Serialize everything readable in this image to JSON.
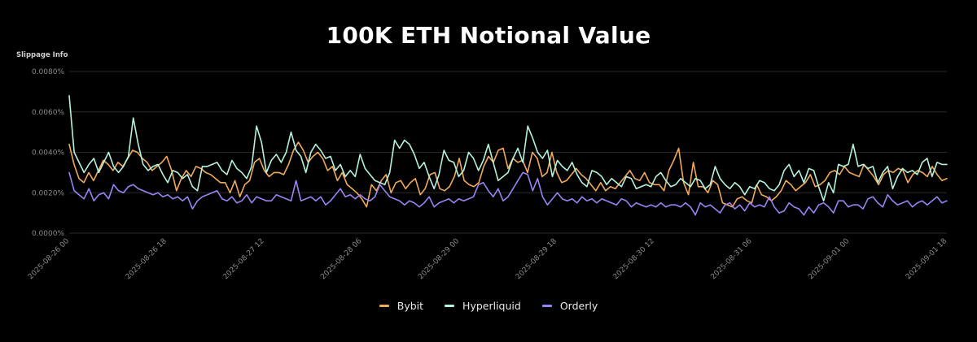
{
  "chart_data": {
    "type": "line",
    "title": "100K ETH Notional Value",
    "ylabel": "Slippage Info",
    "xlabel": "",
    "ylim": [
      0,
      0.008
    ],
    "y_ticks": [
      "0.0000%",
      "0.0020%",
      "0.0040%",
      "0.0060%",
      "0.0080%"
    ],
    "x_ticks": [
      "2025-08-26 00",
      "2025-08-26 18",
      "2025-08-27 12",
      "2025-08-28 06",
      "2025-08-29 00",
      "2025-08-29 18",
      "2025-08-30 12",
      "2025-08-31 06",
      "2025-09-01 00",
      "2025-09-01 18"
    ],
    "grid": true,
    "legend_position": "bottom-center",
    "series": [
      {
        "name": "Bybit",
        "color": "#f0a95b",
        "values": [
          0.0044,
          0.0034,
          0.0027,
          0.0025,
          0.003,
          0.0026,
          0.0031,
          0.0036,
          0.0034,
          0.0031,
          0.0035,
          0.0033,
          0.0037,
          0.0041,
          0.004,
          0.0037,
          0.0035,
          0.0031,
          0.0033,
          0.0035,
          0.0038,
          0.0031,
          0.0021,
          0.0027,
          0.0031,
          0.0028,
          0.0033,
          0.0032,
          0.003,
          0.0029,
          0.0027,
          0.0025,
          0.0025,
          0.002,
          0.0026,
          0.0018,
          0.0024,
          0.0026,
          0.0035,
          0.0037,
          0.0031,
          0.0028,
          0.003,
          0.003,
          0.0029,
          0.0034,
          0.0041,
          0.0045,
          0.0041,
          0.0035,
          0.0038,
          0.004,
          0.0037,
          0.0031,
          0.0033,
          0.0026,
          0.003,
          0.0024,
          0.0022,
          0.002,
          0.0017,
          0.0013,
          0.0024,
          0.0021,
          0.0026,
          0.0029,
          0.002,
          0.0025,
          0.0026,
          0.0022,
          0.0025,
          0.0027,
          0.0019,
          0.0022,
          0.0029,
          0.003,
          0.0022,
          0.0021,
          0.0023,
          0.0028,
          0.0037,
          0.0026,
          0.0024,
          0.0023,
          0.0025,
          0.0033,
          0.0038,
          0.0035,
          0.0041,
          0.0042,
          0.0032,
          0.0037,
          0.0035,
          0.0036,
          0.003,
          0.004,
          0.0037,
          0.0028,
          0.003,
          0.004,
          0.003,
          0.0025,
          0.0026,
          0.0029,
          0.0032,
          0.0029,
          0.0027,
          0.0024,
          0.0021,
          0.0025,
          0.0021,
          0.0023,
          0.0022,
          0.0025,
          0.0028,
          0.0031,
          0.0027,
          0.0026,
          0.003,
          0.0025,
          0.0024,
          0.0024,
          0.0021,
          0.0031,
          0.0036,
          0.0042,
          0.0025,
          0.0019,
          0.0035,
          0.0023,
          0.0023,
          0.002,
          0.0026,
          0.0024,
          0.0015,
          0.0014,
          0.0013,
          0.0017,
          0.0018,
          0.0016,
          0.0015,
          0.0024,
          0.0019,
          0.0018,
          0.0016,
          0.0018,
          0.0021,
          0.0026,
          0.0024,
          0.0021,
          0.0023,
          0.0025,
          0.0029,
          0.0023,
          0.0024,
          0.0026,
          0.003,
          0.0031,
          0.0029,
          0.0033,
          0.003,
          0.0029,
          0.0028,
          0.0034,
          0.0031,
          0.0028,
          0.0024,
          0.0029,
          0.0031,
          0.003,
          0.0032,
          0.0031,
          0.0025,
          0.0029,
          0.0031,
          0.003,
          0.0028,
          0.0033,
          0.0029,
          0.0026,
          0.0027
        ]
      },
      {
        "name": "Hyperliquid",
        "color": "#b5f2dc",
        "values": [
          0.0068,
          0.004,
          0.0035,
          0.003,
          0.0034,
          0.0037,
          0.003,
          0.0035,
          0.004,
          0.0033,
          0.003,
          0.0033,
          0.0038,
          0.0057,
          0.0044,
          0.0034,
          0.0031,
          0.0033,
          0.0034,
          0.0029,
          0.0025,
          0.0031,
          0.003,
          0.0027,
          0.0029,
          0.0023,
          0.0021,
          0.0033,
          0.0033,
          0.0034,
          0.0035,
          0.0031,
          0.0029,
          0.0036,
          0.0032,
          0.003,
          0.0027,
          0.0033,
          0.0053,
          0.0045,
          0.003,
          0.0036,
          0.0039,
          0.0035,
          0.004,
          0.005,
          0.0041,
          0.0038,
          0.003,
          0.004,
          0.0044,
          0.0041,
          0.0037,
          0.0038,
          0.0031,
          0.0034,
          0.0028,
          0.0031,
          0.0028,
          0.0039,
          0.0032,
          0.0029,
          0.0026,
          0.0025,
          0.0024,
          0.003,
          0.0046,
          0.0042,
          0.0046,
          0.0044,
          0.0039,
          0.0032,
          0.0035,
          0.0028,
          0.0022,
          0.0029,
          0.0041,
          0.0036,
          0.0035,
          0.0028,
          0.0031,
          0.004,
          0.0037,
          0.0031,
          0.0036,
          0.0044,
          0.0035,
          0.0026,
          0.0028,
          0.003,
          0.0037,
          0.0042,
          0.0035,
          0.0053,
          0.0047,
          0.004,
          0.0037,
          0.0041,
          0.0028,
          0.0036,
          0.0033,
          0.0031,
          0.0035,
          0.0029,
          0.0025,
          0.0023,
          0.0031,
          0.003,
          0.0028,
          0.0024,
          0.0027,
          0.0025,
          0.0023,
          0.0028,
          0.0027,
          0.0022,
          0.0023,
          0.0024,
          0.0023,
          0.0028,
          0.003,
          0.0026,
          0.0023,
          0.0024,
          0.0027,
          0.0025,
          0.0023,
          0.0027,
          0.0026,
          0.0022,
          0.0024,
          0.0033,
          0.0027,
          0.0024,
          0.0022,
          0.0025,
          0.0023,
          0.0019,
          0.0023,
          0.0022,
          0.0026,
          0.0025,
          0.0022,
          0.0021,
          0.0024,
          0.0031,
          0.0034,
          0.0028,
          0.0031,
          0.0025,
          0.0032,
          0.0031,
          0.0023,
          0.0016,
          0.0025,
          0.002,
          0.0034,
          0.0033,
          0.0034,
          0.0044,
          0.0033,
          0.0034,
          0.0032,
          0.0033,
          0.0025,
          0.003,
          0.0033,
          0.0022,
          0.0028,
          0.0032,
          0.003,
          0.0031,
          0.0029,
          0.0035,
          0.0037,
          0.0028,
          0.0035,
          0.0034,
          0.0034
        ]
      },
      {
        "name": "Orderly",
        "color": "#9b82f2",
        "values": [
          0.003,
          0.0021,
          0.0019,
          0.0017,
          0.0022,
          0.0016,
          0.0019,
          0.002,
          0.0017,
          0.0024,
          0.0021,
          0.002,
          0.0023,
          0.0024,
          0.0022,
          0.0021,
          0.002,
          0.0019,
          0.002,
          0.0018,
          0.0019,
          0.0017,
          0.0018,
          0.0016,
          0.0018,
          0.0012,
          0.0016,
          0.0018,
          0.0019,
          0.002,
          0.0021,
          0.0017,
          0.0016,
          0.0018,
          0.0015,
          0.0016,
          0.0019,
          0.0015,
          0.0018,
          0.0017,
          0.0016,
          0.0016,
          0.0019,
          0.0018,
          0.0017,
          0.0016,
          0.0026,
          0.0016,
          0.0017,
          0.0018,
          0.0016,
          0.0018,
          0.0014,
          0.0016,
          0.0019,
          0.0022,
          0.0018,
          0.0019,
          0.0017,
          0.0019,
          0.0017,
          0.0016,
          0.0018,
          0.0024,
          0.0021,
          0.0018,
          0.0017,
          0.0016,
          0.0014,
          0.0016,
          0.0015,
          0.0013,
          0.0015,
          0.0018,
          0.0013,
          0.0015,
          0.0016,
          0.0017,
          0.0015,
          0.0017,
          0.0016,
          0.0017,
          0.0018,
          0.0024,
          0.0025,
          0.0021,
          0.0018,
          0.0022,
          0.0016,
          0.0018,
          0.0022,
          0.0026,
          0.003,
          0.0029,
          0.0021,
          0.0027,
          0.0018,
          0.0014,
          0.0017,
          0.002,
          0.0017,
          0.0016,
          0.0017,
          0.0015,
          0.0018,
          0.0016,
          0.0017,
          0.0015,
          0.0017,
          0.0016,
          0.0015,
          0.0014,
          0.0017,
          0.0016,
          0.0013,
          0.0015,
          0.0014,
          0.0013,
          0.0014,
          0.0013,
          0.0015,
          0.0013,
          0.0014,
          0.0014,
          0.0013,
          0.0015,
          0.0013,
          0.0009,
          0.0015,
          0.0013,
          0.0014,
          0.0012,
          0.001,
          0.0014,
          0.0015,
          0.0012,
          0.0014,
          0.0011,
          0.0015,
          0.0013,
          0.0014,
          0.0013,
          0.0018,
          0.0013,
          0.001,
          0.0011,
          0.0015,
          0.0013,
          0.0012,
          0.0009,
          0.0013,
          0.001,
          0.0014,
          0.0015,
          0.0013,
          0.001,
          0.0016,
          0.0016,
          0.0013,
          0.0014,
          0.0014,
          0.0012,
          0.0017,
          0.0018,
          0.0015,
          0.0013,
          0.0019,
          0.0016,
          0.0014,
          0.0015,
          0.0016,
          0.0013,
          0.0015,
          0.0016,
          0.0014,
          0.0016,
          0.0018,
          0.0015,
          0.0016
        ]
      }
    ]
  }
}
